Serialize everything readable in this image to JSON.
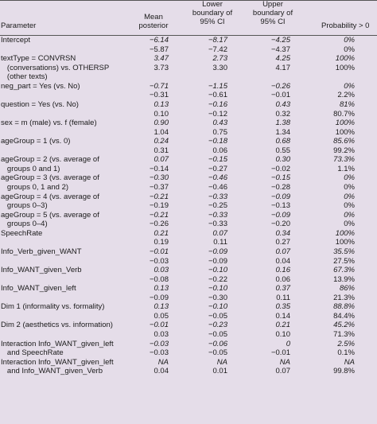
{
  "headers": {
    "parameter": "Parameter",
    "mean_l1": "Mean",
    "mean_l2": "posterior",
    "lower_l1": "Lower",
    "lower_l2": "boundary of",
    "lower_l3": "95% CI",
    "upper_l1": "Upper",
    "upper_l2": "boundary of",
    "upper_l3": "95% CI",
    "prob": "Probability > 0"
  },
  "rows": [
    {
      "label": "Intercept",
      "mean": "−6.14",
      "lower": "−8.17",
      "upper": "−4.25",
      "prob": "0%",
      "italic": true
    },
    {
      "label": "",
      "mean": "−5.87",
      "lower": "−7.42",
      "upper": "−4.37",
      "prob": "0%",
      "italic": false
    },
    {
      "label": "textType = CONVRSN",
      "mean": "3.47",
      "lower": "2.73",
      "upper": "4.25",
      "prob": "100%",
      "italic": true
    },
    {
      "label": "   (conversations) vs. OTHERSP",
      "mean": "3.73",
      "lower": "3.30",
      "upper": "4.17",
      "prob": "100%",
      "italic": false
    },
    {
      "label": "   (other texts)",
      "mean": "",
      "lower": "",
      "upper": "",
      "prob": "",
      "italic": false
    },
    {
      "label": "neg_part = Yes (vs. No)",
      "mean": "−0.71",
      "lower": "−1.15",
      "upper": "−0.26",
      "prob": "0%",
      "italic": true
    },
    {
      "label": "",
      "mean": "−0.31",
      "lower": "−0.61",
      "upper": "−0.01",
      "prob": "2.2%",
      "italic": false
    },
    {
      "label": "question = Yes (vs. No)",
      "mean": "0.13",
      "lower": "−0.16",
      "upper": "0.43",
      "prob": "81%",
      "italic": true
    },
    {
      "label": "",
      "mean": "0.10",
      "lower": "−0.12",
      "upper": "0.32",
      "prob": "80.7%",
      "italic": false
    },
    {
      "label": "sex = m (male) vs. f (female)",
      "mean": "0.90",
      "lower": "0.43",
      "upper": "1.38",
      "prob": "100%",
      "italic": true
    },
    {
      "label": "",
      "mean": "1.04",
      "lower": "0.75",
      "upper": "1.34",
      "prob": "100%",
      "italic": false
    },
    {
      "label": "ageGroup = 1 (vs. 0)",
      "mean": "0.24",
      "lower": "−0.18",
      "upper": "0.68",
      "prob": "85.6%",
      "italic": true
    },
    {
      "label": "",
      "mean": "0.31",
      "lower": "0.06",
      "upper": "0.55",
      "prob": "99.2%",
      "italic": false
    },
    {
      "label": "ageGroup = 2 (vs. average of",
      "mean": "0.07",
      "lower": "−0.15",
      "upper": "0.30",
      "prob": "73.3%",
      "italic": true
    },
    {
      "label": "   groups 0 and 1)",
      "mean": "−0.14",
      "lower": "−0.27",
      "upper": "−0.02",
      "prob": "1.1%",
      "italic": false
    },
    {
      "label": "ageGroup = 3 (vs. average of",
      "mean": "−0.30",
      "lower": "−0.46",
      "upper": "−0.15",
      "prob": "0%",
      "italic": true
    },
    {
      "label": "   groups 0, 1 and 2)",
      "mean": "−0.37",
      "lower": "−0.46",
      "upper": "−0.28",
      "prob": "0%",
      "italic": false
    },
    {
      "label": "ageGroup = 4 (vs. average of",
      "mean": "−0.21",
      "lower": "−0.33",
      "upper": "−0.09",
      "prob": "0%",
      "italic": true
    },
    {
      "label": "   groups 0–3)",
      "mean": "−0.19",
      "lower": "−0.25",
      "upper": "−0.13",
      "prob": "0%",
      "italic": false
    },
    {
      "label": "ageGroup = 5 (vs. average of",
      "mean": "−0.21",
      "lower": "−0.33",
      "upper": "−0.09",
      "prob": "0%",
      "italic": true
    },
    {
      "label": "   groups 0–4)",
      "mean": "−0.26",
      "lower": "−0.33",
      "upper": "−0.20",
      "prob": "0%",
      "italic": false
    },
    {
      "label": "SpeechRate",
      "mean": "0.21",
      "lower": "0.07",
      "upper": "0.34",
      "prob": "100%",
      "italic": true
    },
    {
      "label": "",
      "mean": "0.19",
      "lower": "0.11",
      "upper": "0.27",
      "prob": "100%",
      "italic": false
    },
    {
      "label": "Info_Verb_given_WANT",
      "mean": "−0.01",
      "lower": "−0.09",
      "upper": "0.07",
      "prob": "35.5%",
      "italic": true
    },
    {
      "label": "",
      "mean": "−0.03",
      "lower": "−0.09",
      "upper": "0.04",
      "prob": "27.5%",
      "italic": false
    },
    {
      "label": "Info_WANT_given_Verb",
      "mean": "0.03",
      "lower": "−0.10",
      "upper": "0.16",
      "prob": "67.3%",
      "italic": true
    },
    {
      "label": "",
      "mean": "−0.08",
      "lower": "−0.22",
      "upper": "0.06",
      "prob": "13.9%",
      "italic": false
    },
    {
      "label": "Info_WANT_given_left",
      "mean": "0.13",
      "lower": "−0.10",
      "upper": "0.37",
      "prob": "86%",
      "italic": true
    },
    {
      "label": "",
      "mean": "−0.09",
      "lower": "−0.30",
      "upper": "0.11",
      "prob": "21.3%",
      "italic": false
    },
    {
      "label": "Dim 1 (informality vs. formality)",
      "mean": "0.13",
      "lower": "−0.10",
      "upper": "0.35",
      "prob": "88.8%",
      "italic": true
    },
    {
      "label": "",
      "mean": "0.05",
      "lower": "−0.05",
      "upper": "0.14",
      "prob": "84.4%",
      "italic": false
    },
    {
      "label": "Dim 2 (aesthetics vs. information)",
      "mean": "−0.01",
      "lower": "−0.23",
      "upper": "0.21",
      "prob": "45.2%",
      "italic": true
    },
    {
      "label": "",
      "mean": "0.03",
      "lower": "−0.05",
      "upper": "0.10",
      "prob": "71.3%",
      "italic": false
    },
    {
      "label": "Interaction Info_WANT_given_left",
      "mean": "−0.03",
      "lower": "−0.06",
      "upper": "0",
      "prob": "2.5%",
      "italic": true
    },
    {
      "label": "   and SpeechRate",
      "mean": "−0.03",
      "lower": "−0.05",
      "upper": "−0.01",
      "prob": "0.1%",
      "italic": false
    },
    {
      "label": "Interaction Info_WANT_given_left",
      "mean": "NA",
      "lower": "NA",
      "upper": "NA",
      "prob": "NA",
      "italic": true
    },
    {
      "label": "   and Info_WANT_given_Verb",
      "mean": "0.04",
      "lower": "0.01",
      "upper": "0.07",
      "prob": "99.8%",
      "italic": false
    }
  ]
}
